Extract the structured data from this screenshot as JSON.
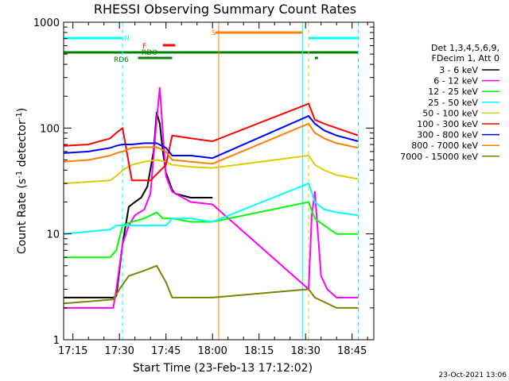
{
  "chart_data": {
    "type": "line",
    "title": "RHESSI Observing Summary Count Rates",
    "xlabel": "Start Time (23-Feb-13 17:12:02)",
    "ylabel_main": "Count Rate (s",
    "ylabel_sup1": "-1",
    "ylabel_mid": " detector",
    "ylabel_sup2": "-1",
    "ylabel_end": ")",
    "ylog": true,
    "xlim": [
      "17:12",
      "18:52"
    ],
    "ylim": [
      1,
      1000
    ],
    "xticks": [
      "17:15",
      "17:30",
      "17:45",
      "18:00",
      "18:15",
      "18:30",
      "18:45"
    ],
    "yticks": [
      {
        "value": 1,
        "label": "1"
      },
      {
        "value": 10,
        "label": "10"
      },
      {
        "value": 100,
        "label": "100"
      },
      {
        "value": 1000,
        "label": "1000"
      }
    ],
    "legend_header": [
      "Det 1,3,4,5,6,9,",
      "FDecim 1, Att 0"
    ],
    "legend_position": "right",
    "series": [
      {
        "name": "3 - 6 keV",
        "color": "#000000",
        "points": [
          [
            "17:12",
            2.5
          ],
          [
            "17:28",
            2.5
          ],
          [
            "17:29",
            2.6
          ],
          [
            "17:31",
            8
          ],
          [
            "17:33",
            18
          ],
          [
            "17:35",
            20
          ],
          [
            "17:37",
            22
          ],
          [
            "17:39",
            28
          ],
          [
            "17:41",
            60
          ],
          [
            "17:42",
            140
          ],
          [
            "17:43",
            110
          ],
          [
            "17:44",
            60
          ],
          [
            "17:45",
            38
          ],
          [
            "17:47",
            26
          ],
          [
            "17:48",
            24
          ],
          [
            "17:53",
            22
          ],
          [
            "18:00",
            22
          ]
        ]
      },
      {
        "name": "6 - 12 keV",
        "color": "#ff00ff",
        "points": [
          [
            "17:12",
            2
          ],
          [
            "17:28",
            2
          ],
          [
            "17:29",
            3
          ],
          [
            "17:31",
            8
          ],
          [
            "17:33",
            12
          ],
          [
            "17:35",
            15
          ],
          [
            "17:38",
            17
          ],
          [
            "17:40",
            24
          ],
          [
            "17:42",
            120
          ],
          [
            "17:43",
            240
          ],
          [
            "17:44",
            90
          ],
          [
            "17:45",
            35
          ],
          [
            "17:47",
            25
          ],
          [
            "17:53",
            20
          ],
          [
            "18:00",
            19
          ],
          [
            "18:31",
            3
          ],
          [
            "18:32",
            15
          ],
          [
            "18:33",
            25
          ],
          [
            "18:34",
            10
          ],
          [
            "18:35",
            4
          ],
          [
            "18:37",
            3
          ],
          [
            "18:40",
            2.5
          ],
          [
            "18:47",
            2.5
          ]
        ]
      },
      {
        "name": "12 - 25 keV",
        "color": "#00ff00",
        "points": [
          [
            "17:12",
            6
          ],
          [
            "17:27",
            6
          ],
          [
            "17:29",
            7
          ],
          [
            "17:31",
            12
          ],
          [
            "17:34",
            13
          ],
          [
            "17:38",
            14
          ],
          [
            "17:42",
            16
          ],
          [
            "17:44",
            14
          ],
          [
            "17:47",
            14
          ],
          [
            "17:53",
            13
          ],
          [
            "18:00",
            13
          ],
          [
            "18:31",
            20
          ],
          [
            "18:33",
            14
          ],
          [
            "18:36",
            12
          ],
          [
            "18:40",
            10
          ],
          [
            "18:47",
            10
          ]
        ]
      },
      {
        "name": "25 - 50 keV",
        "color": "#00ffff",
        "points": [
          [
            "17:12",
            10
          ],
          [
            "17:27",
            11
          ],
          [
            "17:29",
            12
          ],
          [
            "17:31",
            12
          ],
          [
            "17:34",
            12
          ],
          [
            "17:38",
            12
          ],
          [
            "17:42",
            12
          ],
          [
            "17:45",
            12
          ],
          [
            "17:47",
            14
          ],
          [
            "17:53",
            14
          ],
          [
            "18:00",
            13
          ],
          [
            "18:31",
            30
          ],
          [
            "18:33",
            20
          ],
          [
            "18:36",
            17
          ],
          [
            "18:40",
            16
          ],
          [
            "18:47",
            15
          ]
        ]
      },
      {
        "name": "50 - 100 keV",
        "color": "#ddcc00",
        "points": [
          [
            "17:12",
            30
          ],
          [
            "17:27",
            32
          ],
          [
            "17:29",
            35
          ],
          [
            "17:31",
            40
          ],
          [
            "17:34",
            45
          ],
          [
            "17:38",
            48
          ],
          [
            "17:42",
            50
          ],
          [
            "17:45",
            48
          ],
          [
            "17:47",
            45
          ],
          [
            "17:53",
            43
          ],
          [
            "18:00",
            42
          ],
          [
            "18:31",
            55
          ],
          [
            "18:33",
            45
          ],
          [
            "18:36",
            40
          ],
          [
            "18:40",
            36
          ],
          [
            "18:47",
            33
          ]
        ]
      },
      {
        "name": "100 - 300 keV",
        "color": "#ff0000",
        "points": [
          [
            "17:12",
            68
          ],
          [
            "17:20",
            70
          ],
          [
            "17:27",
            80
          ],
          [
            "17:29",
            90
          ],
          [
            "17:31",
            100
          ],
          [
            "17:34",
            32
          ],
          [
            "17:40",
            32
          ],
          [
            "17:45",
            45
          ],
          [
            "17:47",
            85
          ],
          [
            "17:53",
            80
          ],
          [
            "18:00",
            75
          ],
          [
            "18:31",
            170
          ],
          [
            "18:33",
            120
          ],
          [
            "18:36",
            110
          ],
          [
            "18:40",
            100
          ],
          [
            "18:47",
            85
          ]
        ]
      },
      {
        "name": "300 - 800 keV",
        "color": "#0000ff",
        "points": [
          [
            "17:12",
            58
          ],
          [
            "17:20",
            60
          ],
          [
            "17:27",
            65
          ],
          [
            "17:29",
            68
          ],
          [
            "17:31",
            70
          ],
          [
            "17:34",
            70
          ],
          [
            "17:38",
            72
          ],
          [
            "17:42",
            72
          ],
          [
            "17:45",
            65
          ],
          [
            "17:47",
            55
          ],
          [
            "17:53",
            55
          ],
          [
            "18:00",
            52
          ],
          [
            "18:31",
            130
          ],
          [
            "18:33",
            110
          ],
          [
            "18:36",
            95
          ],
          [
            "18:40",
            85
          ],
          [
            "18:47",
            75
          ]
        ]
      },
      {
        "name": "800 - 7000 keV",
        "color": "#ff8000",
        "points": [
          [
            "17:12",
            48
          ],
          [
            "17:20",
            50
          ],
          [
            "17:27",
            55
          ],
          [
            "17:29",
            58
          ],
          [
            "17:31",
            60
          ],
          [
            "17:34",
            65
          ],
          [
            "17:38",
            66
          ],
          [
            "17:42",
            66
          ],
          [
            "17:45",
            60
          ],
          [
            "17:47",
            50
          ],
          [
            "17:53",
            48
          ],
          [
            "18:00",
            46
          ],
          [
            "18:31",
            110
          ],
          [
            "18:33",
            90
          ],
          [
            "18:36",
            80
          ],
          [
            "18:40",
            72
          ],
          [
            "18:47",
            65
          ]
        ]
      },
      {
        "name": "7000 - 15000 keV",
        "color": "#808000",
        "points": [
          [
            "17:12",
            2.2
          ],
          [
            "17:28",
            2.4
          ],
          [
            "17:30",
            3
          ],
          [
            "17:33",
            4
          ],
          [
            "17:38",
            4.5
          ],
          [
            "17:42",
            5
          ],
          [
            "17:45",
            3.5
          ],
          [
            "17:47",
            2.5
          ],
          [
            "18:00",
            2.5
          ],
          [
            "18:31",
            3
          ],
          [
            "18:33",
            2.5
          ],
          [
            "18:40",
            2
          ],
          [
            "18:47",
            2
          ]
        ]
      }
    ],
    "attenuator_bars": [
      {
        "label": "N",
        "color": "#00ffff",
        "segments": [
          [
            "17:12",
            "17:31"
          ],
          [
            "18:31",
            "18:47"
          ]
        ]
      },
      {
        "label": "S",
        "color": "#ff8000",
        "segments": [
          [
            "18:01",
            "18:29"
          ]
        ]
      },
      {
        "label": "F",
        "color": "#ff0000",
        "segments": [
          [
            "17:44",
            "17:48"
          ]
        ]
      },
      {
        "label": "RDO",
        "color": "#008000",
        "segments": [
          [
            "17:12",
            "18:47"
          ]
        ]
      },
      {
        "label": "RD6",
        "color": "#008000",
        "segments": [
          [
            "17:36",
            "17:47"
          ],
          [
            "18:33",
            "18:34"
          ]
        ]
      }
    ],
    "vertical_lines": [
      {
        "time": "17:31",
        "color": "#00ffff",
        "style": "dashed"
      },
      {
        "time": "18:02",
        "color": "#ff8000",
        "style": "solid"
      },
      {
        "time": "18:29",
        "color": "#00ffff",
        "style": "solid"
      },
      {
        "time": "18:31",
        "color": "#ddcc00",
        "style": "dashed"
      },
      {
        "time": "18:47",
        "color": "#00ffff",
        "style": "dashed"
      }
    ],
    "footer_date": "23-Oct-2021 13:06"
  }
}
